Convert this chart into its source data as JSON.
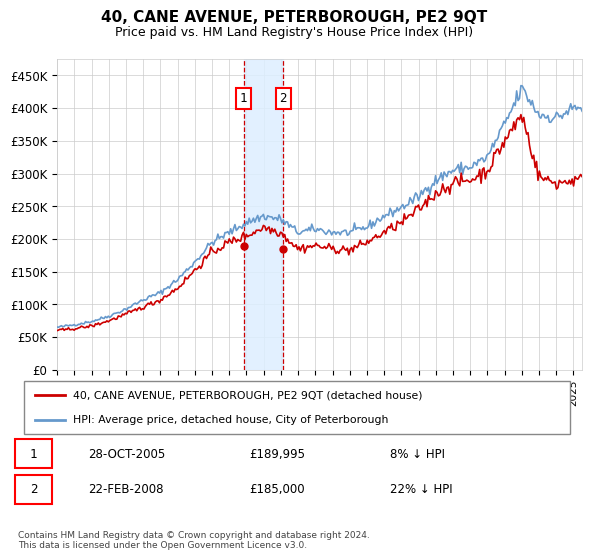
{
  "title": "40, CANE AVENUE, PETERBOROUGH, PE2 9QT",
  "subtitle": "Price paid vs. HM Land Registry's House Price Index (HPI)",
  "hpi_color": "#6699cc",
  "price_color": "#cc0000",
  "shade_color": "#ddeeff",
  "grid_color": "#cccccc",
  "ylim": [
    0,
    475000
  ],
  "yticks": [
    0,
    50000,
    100000,
    150000,
    200000,
    250000,
    300000,
    350000,
    400000,
    450000
  ],
  "sale1": {
    "date": "28-OCT-2005",
    "price": 189995,
    "label": "1",
    "year": 2005.83
  },
  "sale2": {
    "date": "22-FEB-2008",
    "price": 185000,
    "label": "2",
    "year": 2008.13
  },
  "legend_line1": "40, CANE AVENUE, PETERBOROUGH, PE2 9QT (detached house)",
  "legend_line2": "HPI: Average price, detached house, City of Peterborough",
  "table_row1": [
    "1",
    "28-OCT-2005",
    "£189,995",
    "8% ↓ HPI"
  ],
  "table_row2": [
    "2",
    "22-FEB-2008",
    "£185,000",
    "22% ↓ HPI"
  ],
  "footnote": "Contains HM Land Registry data © Crown copyright and database right 2024.\nThis data is licensed under the Open Government Licence v3.0.",
  "xmin": 1995,
  "xmax": 2025.5
}
